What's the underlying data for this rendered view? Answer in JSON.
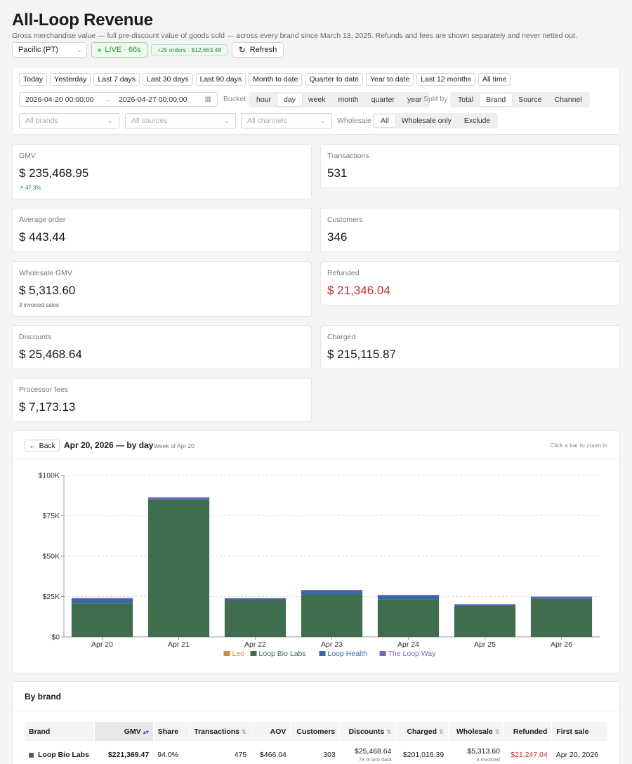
{
  "header": {
    "title": "All-Loop Revenue",
    "subtitle": "Gross merchandise value — full pre-discount value of goods sold — across every brand since March 13, 2025. Refunds and fees are shown separately and never netted out.",
    "timezone": "Pacific (PT)",
    "live": "LIVE · 66s",
    "new_orders": "+25 orders · $12,663.48",
    "refresh": "Refresh"
  },
  "filters": {
    "presets": [
      "Today",
      "Yesterday",
      "Last 7 days",
      "Last 30 days",
      "Last 90 days",
      "Month to date",
      "Quarter to date",
      "Year to date",
      "Last 12 months",
      "All time"
    ],
    "date_from": "2026-04-20 00:00:00",
    "date_to": "2026-04-27 00:00:00",
    "bucket_label": "Bucket",
    "buckets": [
      "hour",
      "day",
      "week",
      "month",
      "quarter",
      "year"
    ],
    "bucket_selected": "day",
    "split_label": "Split by",
    "splits": [
      "Total",
      "Brand",
      "Source",
      "Channel"
    ],
    "split_selected": "Brand",
    "brands_placeholder": "All brands",
    "sources_placeholder": "All sources",
    "channels_placeholder": "All channels",
    "wholesale_label": "Wholesale",
    "wholesale_options": [
      "All",
      "Wholesale only",
      "Exclude"
    ],
    "wholesale_selected": "All"
  },
  "metrics": {
    "gmv": {
      "label": "GMV",
      "value": "$ 235,468.95",
      "delta": "47.3%"
    },
    "transactions": {
      "label": "Transactions",
      "value": "531"
    },
    "avg_order": {
      "label": "Average order",
      "value": "$ 443.44"
    },
    "customers": {
      "label": "Customers",
      "value": "346"
    },
    "wholesale_gmv": {
      "label": "Wholesale GMV",
      "value": "$ 5,313.60",
      "note": "3 invoiced sales"
    },
    "refunded": {
      "label": "Refunded",
      "value": "$ 21,346.04"
    },
    "discounts": {
      "label": "Discounts",
      "value": "$ 25,468.64"
    },
    "charged": {
      "label": "Charged",
      "value": "$ 215,115.87"
    },
    "processor_fees": {
      "label": "Processor fees",
      "value": "$ 7,173.13"
    }
  },
  "chart_panel": {
    "back": "Back",
    "title": "Apr 20, 2026 — by day",
    "subtitle": "Week of Apr 20",
    "hint": "Click a bar to zoom in"
  },
  "chart_data": {
    "type": "bar",
    "stacked": true,
    "categories": [
      "Apr 20",
      "Apr 21",
      "Apr 22",
      "Apr 23",
      "Apr 24",
      "Apr 25",
      "Apr 26"
    ],
    "series": [
      {
        "name": "Leo",
        "color": "#c98b3f",
        "values": [
          0,
          0,
          0,
          0,
          0,
          0,
          0
        ]
      },
      {
        "name": "Loop Bio Labs",
        "color": "#3f6e4f",
        "values": [
          20700,
          84900,
          22800,
          26300,
          23400,
          19200,
          23600
        ]
      },
      {
        "name": "Loop Health",
        "color": "#3d66a8",
        "values": [
          3100,
          900,
          900,
          2500,
          2400,
          800,
          1100
        ]
      },
      {
        "name": "The Loop Way",
        "color": "#8b5fbf",
        "values": [
          300,
          600,
          300,
          300,
          200,
          300,
          300
        ]
      }
    ],
    "yticks": [
      "$0",
      "$25K",
      "$50K",
      "$75K",
      "$100K"
    ],
    "ylim": [
      0,
      100000
    ],
    "grid": true,
    "legend": "bottom"
  },
  "brand_table": {
    "title": "By brand",
    "columns": [
      "Brand",
      "GMV",
      "Share",
      "Transactions",
      "AOV",
      "Customers",
      "Discounts",
      "Charged",
      "Wholesale",
      "Refunded",
      "First sale"
    ],
    "rows": [
      {
        "brand": "Loop Bio Labs",
        "gmv": "$221,369.47",
        "share": "94.0%",
        "transactions": "475",
        "aov": "$466.04",
        "customers": "303",
        "discounts": "$25,468.64",
        "discounts_note": "73 tx w/o data",
        "charged": "$201,016.39",
        "wholesale": "$5,313.60",
        "wholesale_note": "3 invoiced",
        "refunded": "$21,247.04",
        "first_sale": "Apr 20, 2026"
      }
    ]
  }
}
